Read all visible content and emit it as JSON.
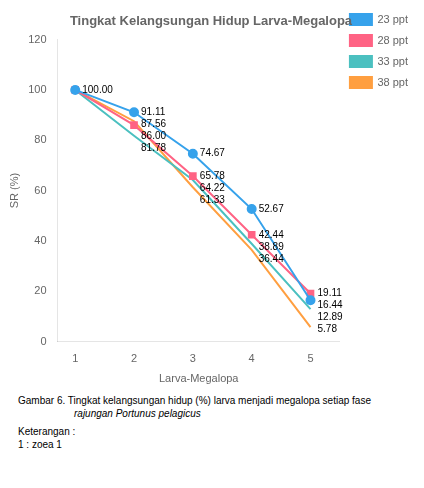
{
  "chart_data": {
    "type": "line",
    "title": "Tingkat Kelangsungan Hidup Larva-Megalopa",
    "x_label": "Larva-Megalopa",
    "y_label": "SR (%)",
    "x": [
      1,
      2,
      3,
      4,
      5
    ],
    "xlim": [
      0.7,
      5.5
    ],
    "xticks": [
      1,
      2,
      3,
      4,
      5
    ],
    "ylim": [
      0,
      120
    ],
    "yticks": [
      0,
      20,
      40,
      60,
      80,
      100,
      120
    ],
    "grid": false,
    "legend": "right",
    "data_labels": true,
    "series": [
      {
        "name": "23 ppt",
        "marker": "circle",
        "values": [
          100.0,
          91.11,
          74.67,
          52.67,
          16.44
        ],
        "value_labels": [
          "100.00",
          "91.11",
          "74.67",
          "52.67",
          "16.44"
        ]
      },
      {
        "name": "28 ppt",
        "marker": "square",
        "values": [
          100.0,
          86.0,
          65.78,
          42.44,
          19.11
        ],
        "value_labels": [
          null,
          "86.00",
          "65.78",
          "42.44",
          "19.11"
        ]
      },
      {
        "name": "33 ppt",
        "marker": "none",
        "values": [
          100.0,
          81.78,
          64.22,
          38.89,
          12.89
        ],
        "value_labels": [
          null,
          "81.78",
          "64.22",
          "38.89",
          "12.89"
        ]
      },
      {
        "name": "38 ppt",
        "marker": "none",
        "values": [
          100.0,
          87.56,
          61.33,
          36.44,
          5.78
        ],
        "value_labels": [
          null,
          "87.56",
          "61.33",
          "36.44",
          "5.78"
        ]
      }
    ],
    "caption": [
      "Gambar 6.   Tingkat kelangsungan hidup (%) larva menjadi megalopa setiap fase",
      "rajungan Portunus pelagicus",
      "Keterangan :",
      "1 : zoea 1"
    ]
  }
}
